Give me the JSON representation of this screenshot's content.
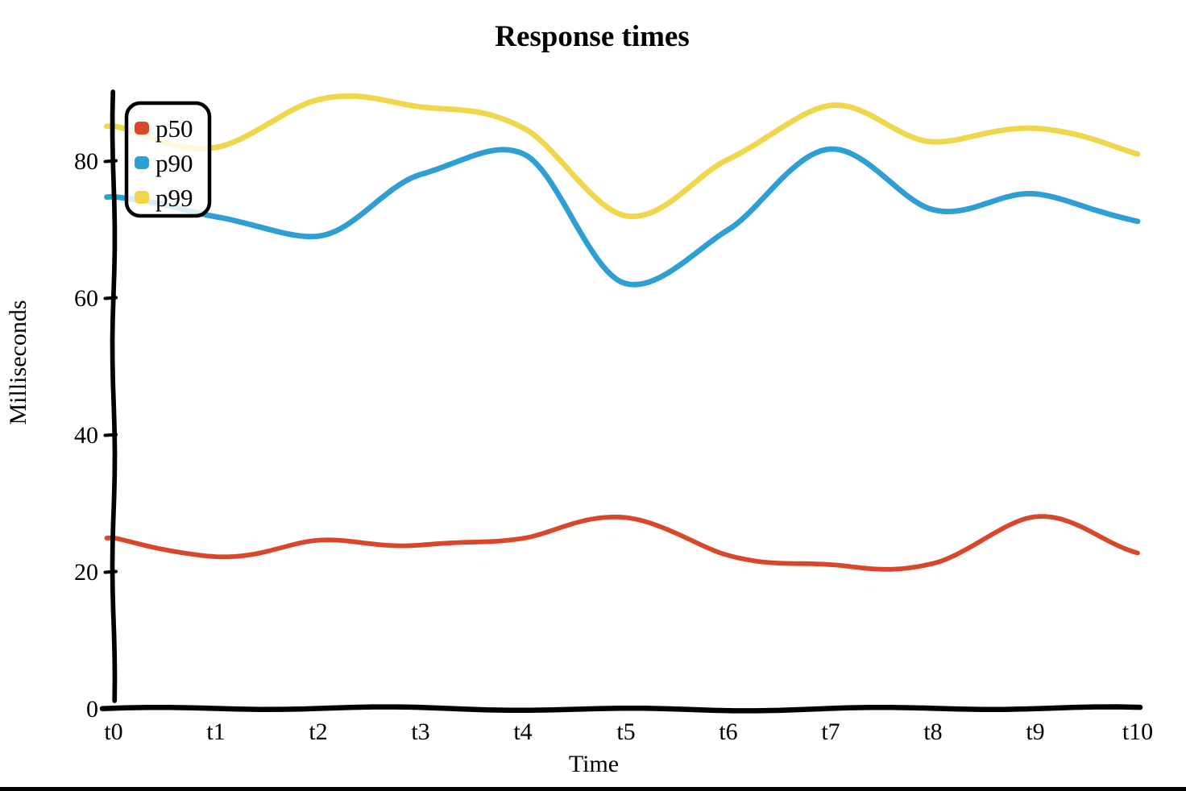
{
  "chart_data": {
    "type": "line",
    "style": "hand-drawn-xkcd",
    "title": "Response times",
    "xlabel": "Time",
    "ylabel": "Milliseconds",
    "categories": [
      "t0",
      "t1",
      "t2",
      "t3",
      "t4",
      "t5",
      "t6",
      "t7",
      "t8",
      "t9",
      "t10"
    ],
    "y_ticks": [
      0,
      20,
      40,
      60,
      80
    ],
    "ylim": [
      0,
      93
    ],
    "grid": false,
    "legend_position": "upper-left",
    "axis_color": "#000000",
    "background": "#ffffff",
    "series": [
      {
        "name": "p50",
        "color": "#d9472b",
        "values": [
          25,
          22,
          24.5,
          24,
          25,
          28,
          22.5,
          21,
          21,
          28,
          23
        ]
      },
      {
        "name": "p90",
        "color": "#2e9fd4",
        "values": [
          75,
          72,
          69,
          78,
          81,
          62,
          70,
          82,
          73,
          75,
          71
        ]
      },
      {
        "name": "p99",
        "color": "#f0d64b",
        "values": [
          85,
          82,
          89,
          88,
          85,
          72,
          80,
          88,
          83,
          85,
          81
        ]
      }
    ]
  }
}
